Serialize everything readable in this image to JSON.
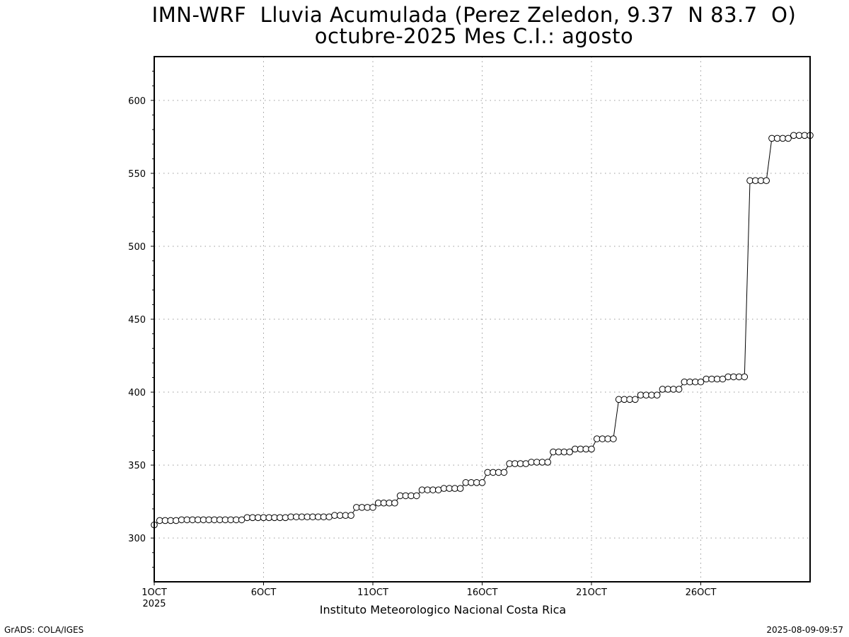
{
  "title_line1": "IMN-WRF  Lluvia Acumulada (Perez Zeledon, 9.37  N 83.7  O)",
  "title_line2": "octubre-2025 Mes C.I.: agosto",
  "credit": "Instituto Meteorologico Nacional Costa Rica",
  "footer_left": "GrADS: COLA/IGES",
  "footer_right": "2025-08-09-09:57",
  "colors": {
    "line": "#000000",
    "marker_fill": "#ffffff",
    "grid": "#9a9a9a",
    "background": "#ffffff"
  },
  "chart_data": {
    "type": "line",
    "x_unit": "6-hourly steps from 1 Oct 2025",
    "xlim": [
      0,
      120
    ],
    "ylim": [
      270,
      630
    ],
    "grid": true,
    "yticks": [
      300,
      350,
      400,
      450,
      500,
      550,
      600
    ],
    "xticks": [
      {
        "x": 0,
        "label": "1OCT",
        "sublabel": "2025"
      },
      {
        "x": 20,
        "label": "6OCT"
      },
      {
        "x": 40,
        "label": "11OCT"
      },
      {
        "x": 60,
        "label": "16OCT"
      },
      {
        "x": 80,
        "label": "21OCT"
      },
      {
        "x": 100,
        "label": "26OCT"
      }
    ],
    "series": [
      {
        "marker": "circle",
        "values": [
          309,
          312,
          312,
          312,
          312,
          312.5,
          312.5,
          312.5,
          312.5,
          312.5,
          312.5,
          312.5,
          312.5,
          312.5,
          312.5,
          312.5,
          312.5,
          314,
          314,
          314,
          314,
          314,
          314,
          314,
          314,
          314.5,
          314.5,
          314.5,
          314.5,
          314.5,
          314.5,
          314.5,
          314.5,
          315.5,
          315.5,
          315.5,
          315.5,
          321,
          321,
          321,
          321,
          324,
          324,
          324,
          324,
          329,
          329,
          329,
          329,
          333,
          333,
          333,
          333,
          334,
          334,
          334,
          334,
          338,
          338,
          338,
          338,
          345,
          345,
          345,
          345,
          351,
          351,
          351,
          351,
          352,
          352,
          352,
          352,
          359,
          359,
          359,
          359,
          361,
          361,
          361,
          361,
          368,
          368,
          368,
          368,
          395,
          395,
          395,
          395,
          398,
          398,
          398,
          398,
          402,
          402,
          402,
          402,
          407,
          407,
          407,
          407,
          409,
          409,
          409,
          409,
          410.5,
          410.5,
          410.5,
          410.5,
          545,
          545,
          545,
          545,
          574,
          574,
          574,
          574,
          576,
          576,
          576,
          576
        ]
      }
    ]
  }
}
